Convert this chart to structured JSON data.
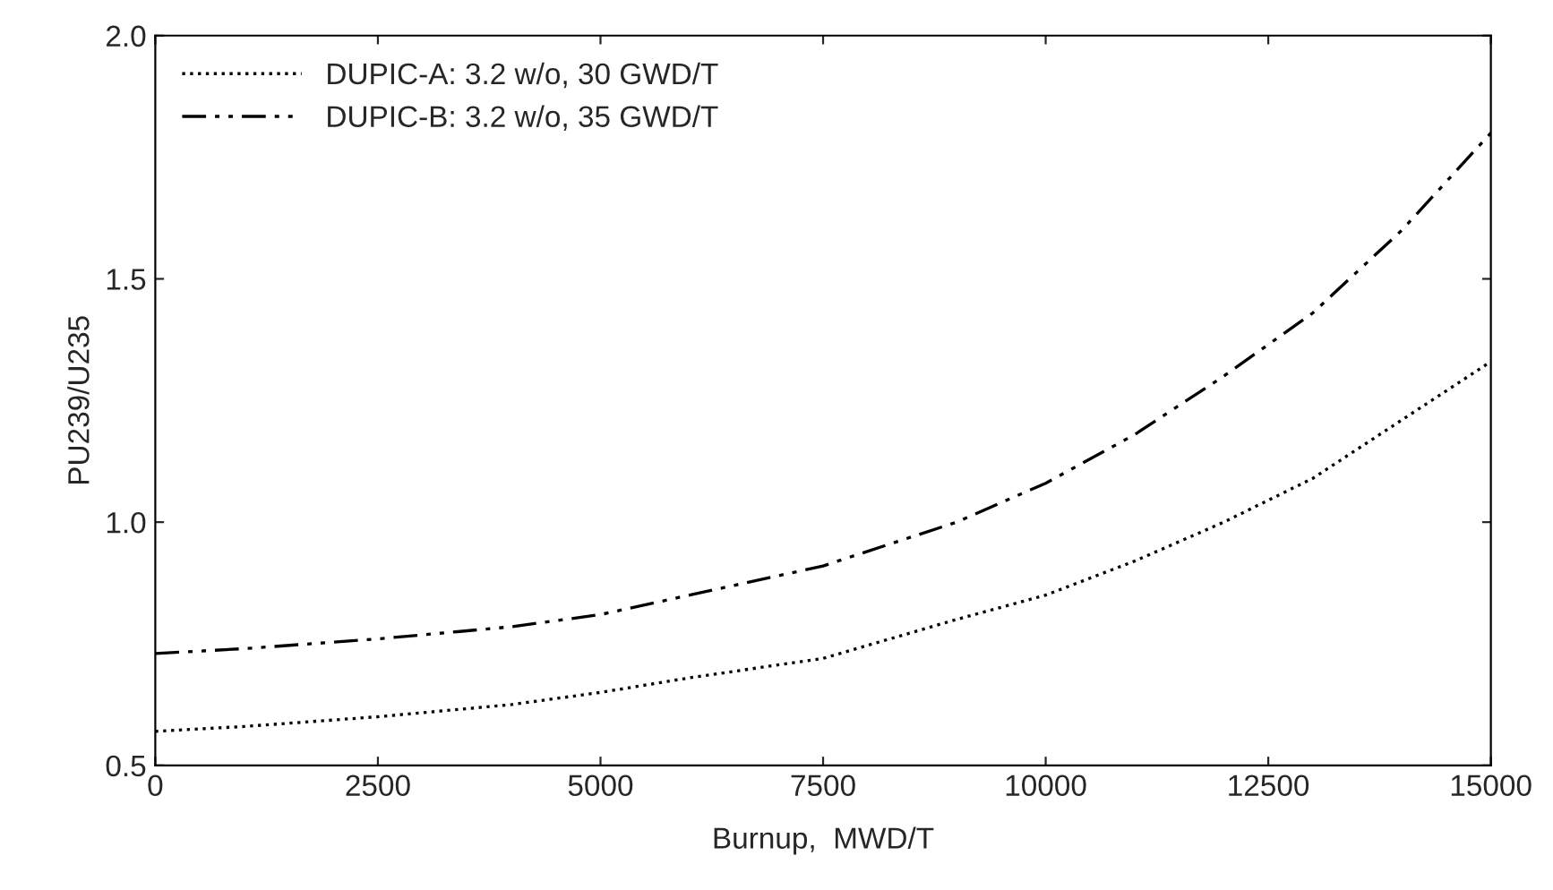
{
  "chart_data": {
    "type": "line",
    "xlabel": "Burnup,  MWD/T",
    "ylabel": "PU239/U235",
    "x": [
      0,
      1000,
      2500,
      4000,
      5000,
      6000,
      7500,
      9000,
      10000,
      11000,
      12000,
      13000,
      14000,
      15000
    ],
    "series": [
      {
        "name": "DUPIC-A: 3.2 w/o, 30 GWD/T",
        "color": "#000000",
        "line_style": "dotted",
        "values": [
          0.57,
          0.58,
          0.6,
          0.625,
          0.65,
          0.68,
          0.72,
          0.8,
          0.85,
          0.92,
          1.0,
          1.09,
          1.21,
          1.33
        ]
      },
      {
        "name": "DUPIC-B: 3.2 w/o, 35 GWD/T",
        "color": "#000000",
        "line_style": "dashdot",
        "values": [
          0.73,
          0.74,
          0.76,
          0.785,
          0.81,
          0.85,
          0.91,
          1.0,
          1.08,
          1.18,
          1.3,
          1.43,
          1.6,
          1.8
        ]
      }
    ],
    "xlim": [
      0,
      15000
    ],
    "xticks": [
      0,
      2500,
      5000,
      7500,
      10000,
      12500,
      15000
    ],
    "ylim": [
      0.5,
      2.0
    ],
    "yticks": [
      {
        "value": 0.5,
        "label": "0.5"
      },
      {
        "value": 1.0,
        "label": "1.0"
      },
      {
        "value": 1.5,
        "label": "1.5"
      },
      {
        "value": 2.0,
        "label": "2.0"
      }
    ],
    "legend": "top left",
    "grid": false,
    "marker": "none"
  }
}
